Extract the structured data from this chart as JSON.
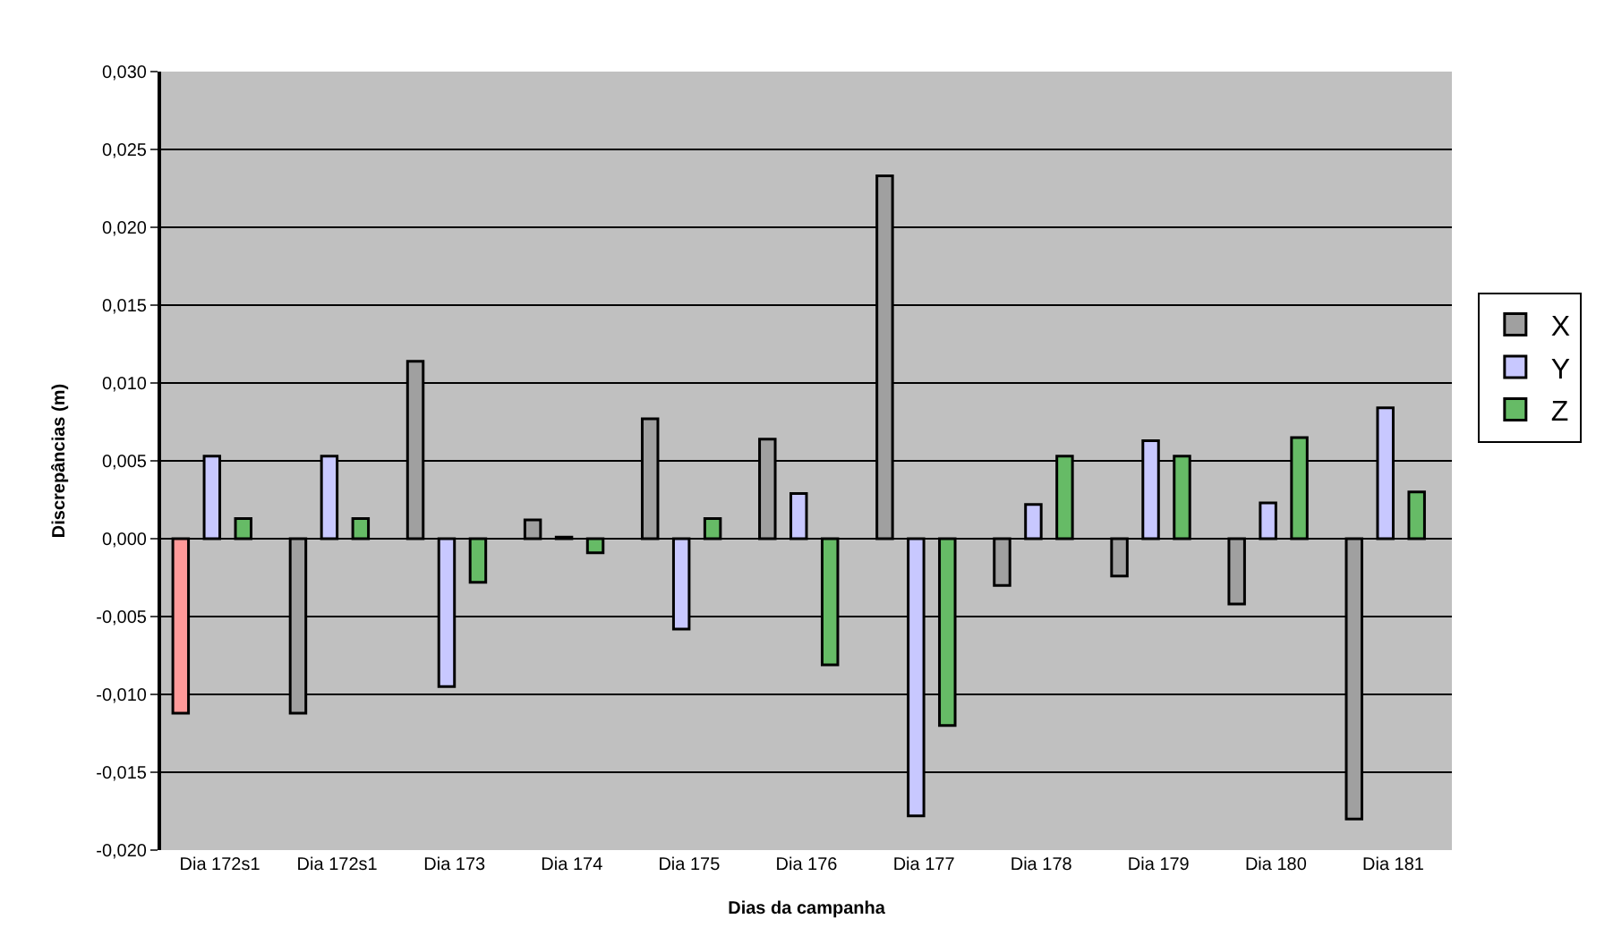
{
  "chart_data": {
    "type": "bar",
    "xlabel": "Dias da campanha",
    "ylabel": "Discrepâncias (m)",
    "categories": [
      "Dia 172s1",
      "Dia 172s1",
      "Dia 173",
      "Dia 174",
      "Dia 175",
      "Dia 176",
      "Dia 177",
      "Dia 178",
      "Dia 179",
      "Dia 180",
      "Dia 181"
    ],
    "series": [
      {
        "name": "X",
        "color": "#a0a0a0",
        "colors": [
          "#ff9999",
          null,
          null,
          null,
          null,
          null,
          null,
          null,
          null,
          null,
          null
        ],
        "values": [
          -0.0112,
          -0.0112,
          0.0114,
          0.0012,
          0.0077,
          0.0064,
          0.0233,
          -0.003,
          -0.0024,
          -0.0042,
          -0.018
        ]
      },
      {
        "name": "Y",
        "color": "#c8c8ff",
        "values": [
          0.0053,
          0.0053,
          -0.0095,
          0.0001,
          -0.0058,
          0.0029,
          -0.0178,
          0.0022,
          0.0063,
          0.0023,
          0.0084
        ]
      },
      {
        "name": "Z",
        "color": "#66bb66",
        "values": [
          0.0013,
          0.0013,
          -0.0028,
          -0.0009,
          0.0013,
          -0.0081,
          -0.012,
          0.0053,
          0.0053,
          0.0065,
          0.003
        ]
      }
    ],
    "ylim": [
      -0.02,
      0.03
    ],
    "yticks": [
      {
        "value": -0.02,
        "label": "-0,020"
      },
      {
        "value": -0.015,
        "label": "-0,015"
      },
      {
        "value": -0.01,
        "label": "-0,010"
      },
      {
        "value": -0.005,
        "label": "-0,005"
      },
      {
        "value": 0,
        "label": "0,000"
      },
      {
        "value": 0.005,
        "label": "0,005"
      },
      {
        "value": 0.01,
        "label": "0,010"
      },
      {
        "value": 0.015,
        "label": "0,015"
      },
      {
        "value": 0.02,
        "label": "0,020"
      },
      {
        "value": 0.025,
        "label": "0,025"
      },
      {
        "value": 0.03,
        "label": "0,030"
      }
    ],
    "grid": "y",
    "legend": "right"
  }
}
